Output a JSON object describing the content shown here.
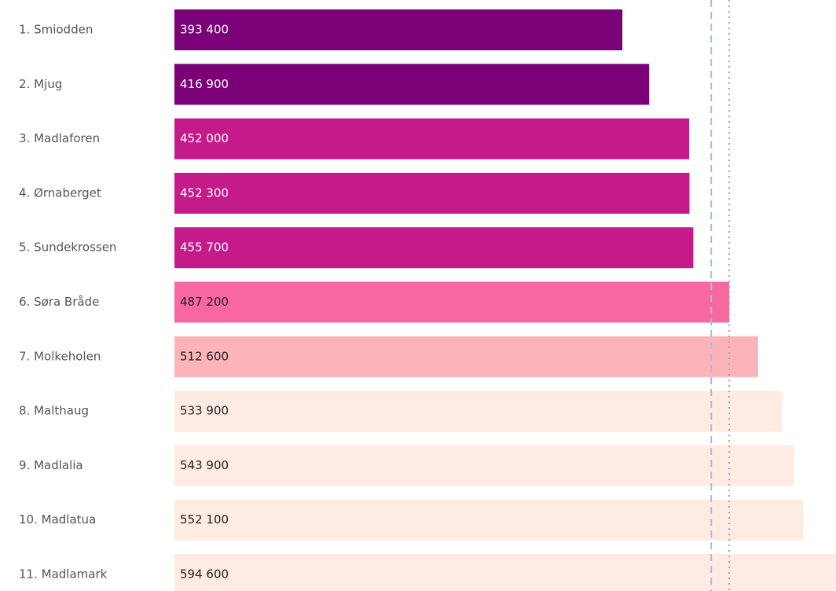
{
  "chart_data": {
    "type": "hbar",
    "categories": [
      "1. Smiodden",
      "2. Mjug",
      "3. Madlaforen",
      "4. Ørnaberget",
      "5. Sundekrossen",
      "6. Søra Bråde",
      "7. Molkeholen",
      "8. Malthaug",
      "9. Madlalia",
      "10. Madlatua",
      "11. Madlamark"
    ],
    "values": [
      393400,
      416900,
      452000,
      452300,
      455700,
      487200,
      512600,
      533900,
      543900,
      552100,
      594600
    ],
    "value_labels": [
      "393 400",
      "416 900",
      "452 000",
      "452 300",
      "455 700",
      "487 200",
      "512 600",
      "533 900",
      "543 900",
      "552 100",
      "594 600"
    ],
    "colors": [
      "#7a0177",
      "#7a0177",
      "#c51b8a",
      "#c51b8a",
      "#c51b8a",
      "#f768a1",
      "#fbb4b9",
      "#feebe2",
      "#feebe2",
      "#feebe2",
      "#feebe2"
    ],
    "xlim": [
      0,
      581000
    ],
    "reference_lines": [
      {
        "value": 471400,
        "style": "dashed",
        "color": "#a9bdd8"
      },
      {
        "value": 487200,
        "style": "dotted",
        "color": "#a3a9c4"
      }
    ]
  }
}
